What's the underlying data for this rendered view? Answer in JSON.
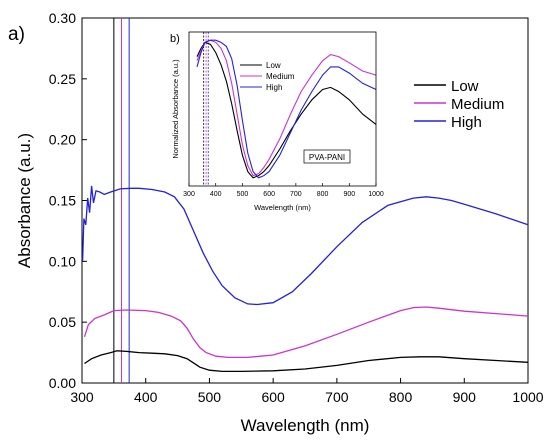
{
  "chart_data": [
    {
      "type": "line",
      "panel_label": "a)",
      "xlabel": "Wavelength (nm)",
      "ylabel": "Absorbance (a.u.)",
      "xlim": [
        300,
        1000
      ],
      "ylim": [
        0,
        0.3
      ],
      "xticks": [
        "300",
        "400",
        "500",
        "600",
        "700",
        "800",
        "900",
        "1000"
      ],
      "yticks": [
        "0.00",
        "0.05",
        "0.10",
        "0.15",
        "0.20",
        "0.25",
        "0.30"
      ],
      "legend": "right",
      "markers_x": [
        350,
        362,
        374
      ],
      "series": [
        {
          "name": "Low",
          "color": "#000000",
          "x": [
            304,
            315,
            330,
            345,
            355,
            370,
            390,
            410,
            430,
            450,
            465,
            475,
            485,
            500,
            520,
            550,
            600,
            650,
            700,
            750,
            800,
            830,
            860,
            900,
            950,
            1000
          ],
          "y": [
            0.016,
            0.02,
            0.023,
            0.025,
            0.0265,
            0.026,
            0.025,
            0.0245,
            0.024,
            0.0225,
            0.02,
            0.0165,
            0.013,
            0.0105,
            0.0095,
            0.0095,
            0.01,
            0.0115,
            0.0145,
            0.0185,
            0.021,
            0.0215,
            0.0215,
            0.02,
            0.0185,
            0.017
          ]
        },
        {
          "name": "Medium",
          "color": "#cc33cc",
          "x": [
            304,
            310,
            320,
            335,
            350,
            370,
            400,
            420,
            440,
            455,
            465,
            475,
            485,
            495,
            510,
            530,
            560,
            600,
            650,
            700,
            750,
            800,
            820,
            840,
            860,
            900,
            950,
            1000
          ],
          "y": [
            0.038,
            0.048,
            0.053,
            0.056,
            0.0595,
            0.06,
            0.0595,
            0.058,
            0.055,
            0.051,
            0.045,
            0.036,
            0.029,
            0.025,
            0.022,
            0.021,
            0.021,
            0.023,
            0.0305,
            0.04,
            0.05,
            0.0595,
            0.062,
            0.0625,
            0.0615,
            0.059,
            0.057,
            0.055
          ]
        },
        {
          "name": "High",
          "color": "#2222dd",
          "x": [
            301,
            303,
            306,
            309,
            312,
            315,
            318,
            322,
            328,
            335,
            345,
            360,
            375,
            390,
            410,
            430,
            445,
            460,
            475,
            490,
            505,
            520,
            540,
            560,
            575,
            600,
            630,
            660,
            700,
            740,
            780,
            820,
            840,
            860,
            880,
            900,
            950,
            1000
          ],
          "y": [
            0.1,
            0.135,
            0.13,
            0.152,
            0.14,
            0.162,
            0.148,
            0.158,
            0.157,
            0.155,
            0.157,
            0.1595,
            0.16,
            0.16,
            0.159,
            0.157,
            0.153,
            0.143,
            0.125,
            0.107,
            0.092,
            0.08,
            0.07,
            0.065,
            0.0645,
            0.066,
            0.075,
            0.09,
            0.112,
            0.132,
            0.146,
            0.152,
            0.153,
            0.152,
            0.15,
            0.147,
            0.139,
            0.13
          ]
        }
      ]
    },
    {
      "type": "line",
      "panel_label": "b)",
      "xlabel": "Wavelength (nm)",
      "ylabel": "Normalized Absorbance (a.u.)",
      "xlim": [
        300,
        1000
      ],
      "xticks": [
        "300",
        "400",
        "500",
        "600",
        "700",
        "800",
        "900",
        "1000"
      ],
      "annotation": "PVA-PANI",
      "legend": "top-left",
      "markers_x": [
        355,
        364,
        372
      ],
      "series": [
        {
          "name": "Low",
          "color": "#000000",
          "x": [
            330,
            345,
            360,
            380,
            400,
            420,
            440,
            460,
            480,
            500,
            520,
            540,
            560,
            580,
            600,
            640,
            680,
            720,
            760,
            800,
            830,
            860,
            900,
            950,
            1000
          ],
          "y": [
            0.88,
            0.92,
            0.95,
            0.94,
            0.9,
            0.84,
            0.76,
            0.65,
            0.52,
            0.4,
            0.32,
            0.29,
            0.3,
            0.32,
            0.35,
            0.43,
            0.52,
            0.6,
            0.67,
            0.72,
            0.73,
            0.71,
            0.67,
            0.6,
            0.55
          ]
        },
        {
          "name": "Medium",
          "color": "#cc33cc",
          "x": [
            330,
            345,
            360,
            380,
            400,
            420,
            440,
            460,
            480,
            500,
            520,
            540,
            560,
            580,
            600,
            640,
            680,
            720,
            760,
            800,
            830,
            860,
            900,
            950,
            1000
          ],
          "y": [
            0.86,
            0.91,
            0.95,
            0.96,
            0.95,
            0.92,
            0.86,
            0.75,
            0.6,
            0.45,
            0.35,
            0.3,
            0.31,
            0.34,
            0.38,
            0.48,
            0.6,
            0.71,
            0.79,
            0.86,
            0.89,
            0.88,
            0.85,
            0.81,
            0.79
          ]
        },
        {
          "name": "High",
          "color": "#2222dd",
          "x": [
            330,
            345,
            360,
            380,
            400,
            420,
            440,
            460,
            480,
            500,
            520,
            540,
            560,
            580,
            600,
            640,
            680,
            720,
            760,
            800,
            830,
            860,
            900,
            950,
            1000
          ],
          "y": [
            0.83,
            0.9,
            0.95,
            0.96,
            0.96,
            0.95,
            0.93,
            0.87,
            0.74,
            0.57,
            0.41,
            0.32,
            0.29,
            0.3,
            0.32,
            0.4,
            0.51,
            0.62,
            0.71,
            0.79,
            0.83,
            0.83,
            0.8,
            0.75,
            0.72
          ]
        }
      ]
    }
  ]
}
